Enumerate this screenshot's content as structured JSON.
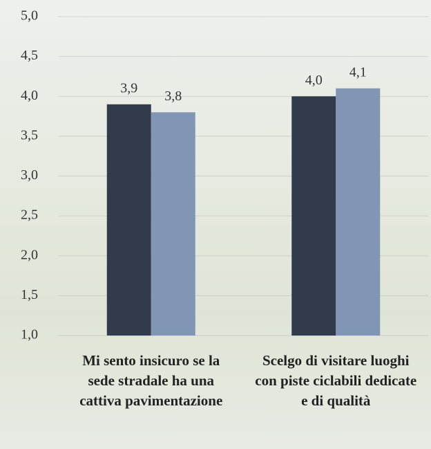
{
  "chart_data": {
    "type": "bar",
    "categories": [
      "Mi sento insicuro se la sede stradale ha una cattiva pavimentazione",
      "Scelgo di visitare luoghi con piste ciclabili dedicate e di qualità"
    ],
    "series": [
      {
        "color": "#323b4c",
        "values": [
          3.9,
          4.0
        ],
        "value_labels": [
          "3,9",
          "4,0"
        ]
      },
      {
        "color": "#8096b4",
        "values": [
          3.8,
          4.1
        ],
        "value_labels": [
          "3,8",
          "4,1"
        ]
      }
    ],
    "ylim": [
      1,
      5
    ],
    "yticks": [
      {
        "value": 1,
        "label": "1,0"
      },
      {
        "value": 1.5,
        "label": "1,5"
      },
      {
        "value": 2,
        "label": "2,0"
      },
      {
        "value": 2.5,
        "label": "2,5"
      },
      {
        "value": 3,
        "label": "3,0"
      },
      {
        "value": 3.5,
        "label": "3,5"
      },
      {
        "value": 4,
        "label": "4,0"
      },
      {
        "value": 4.5,
        "label": "4,5"
      },
      {
        "value": 5,
        "label": "5,0"
      }
    ],
    "grid": true
  }
}
